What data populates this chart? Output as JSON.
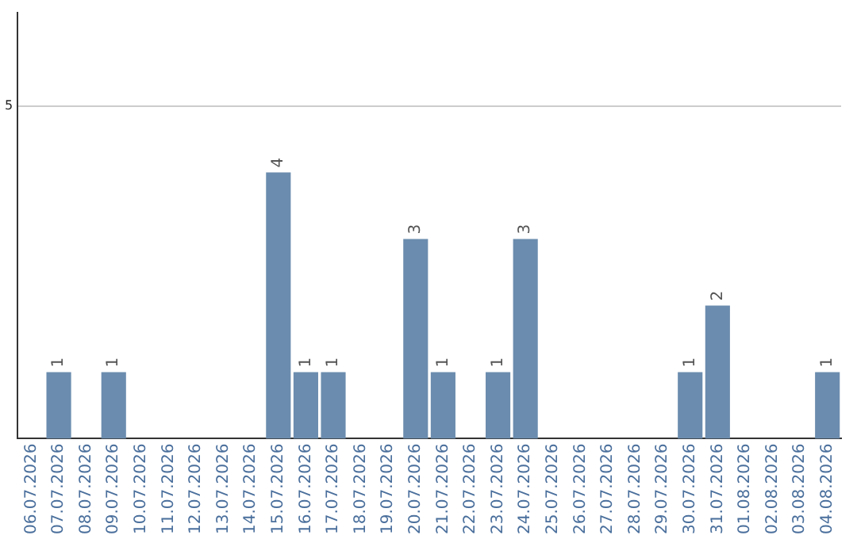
{
  "chart_data": {
    "type": "bar",
    "categories": [
      "06.07.2026",
      "07.07.2026",
      "08.07.2026",
      "09.07.2026",
      "10.07.2026",
      "11.07.2026",
      "12.07.2026",
      "13.07.2026",
      "14.07.2026",
      "15.07.2026",
      "16.07.2026",
      "17.07.2026",
      "18.07.2026",
      "19.07.2026",
      "20.07.2026",
      "21.07.2026",
      "22.07.2026",
      "23.07.2026",
      "24.07.2026",
      "25.07.2026",
      "26.07.2026",
      "27.07.2026",
      "28.07.2026",
      "29.07.2026",
      "30.07.2026",
      "31.07.2026",
      "01.08.2026",
      "02.08.2026",
      "03.08.2026",
      "04.08.2026"
    ],
    "values": [
      0,
      1,
      0,
      1,
      0,
      0,
      0,
      0,
      0,
      4,
      1,
      1,
      0,
      0,
      3,
      1,
      0,
      1,
      3,
      0,
      0,
      0,
      0,
      0,
      1,
      2,
      0,
      0,
      0,
      1
    ],
    "value_labels": [
      null,
      "1",
      null,
      "1",
      null,
      null,
      null,
      null,
      null,
      "4",
      "1",
      "1",
      null,
      null,
      "3",
      "1",
      null,
      "1",
      "3",
      null,
      null,
      null,
      null,
      null,
      "1",
      "2",
      null,
      null,
      null,
      "1"
    ],
    "color": "#6b8cae",
    "ylim": [
      0,
      6.4
    ],
    "yticks": [
      5
    ],
    "grid": "y"
  }
}
